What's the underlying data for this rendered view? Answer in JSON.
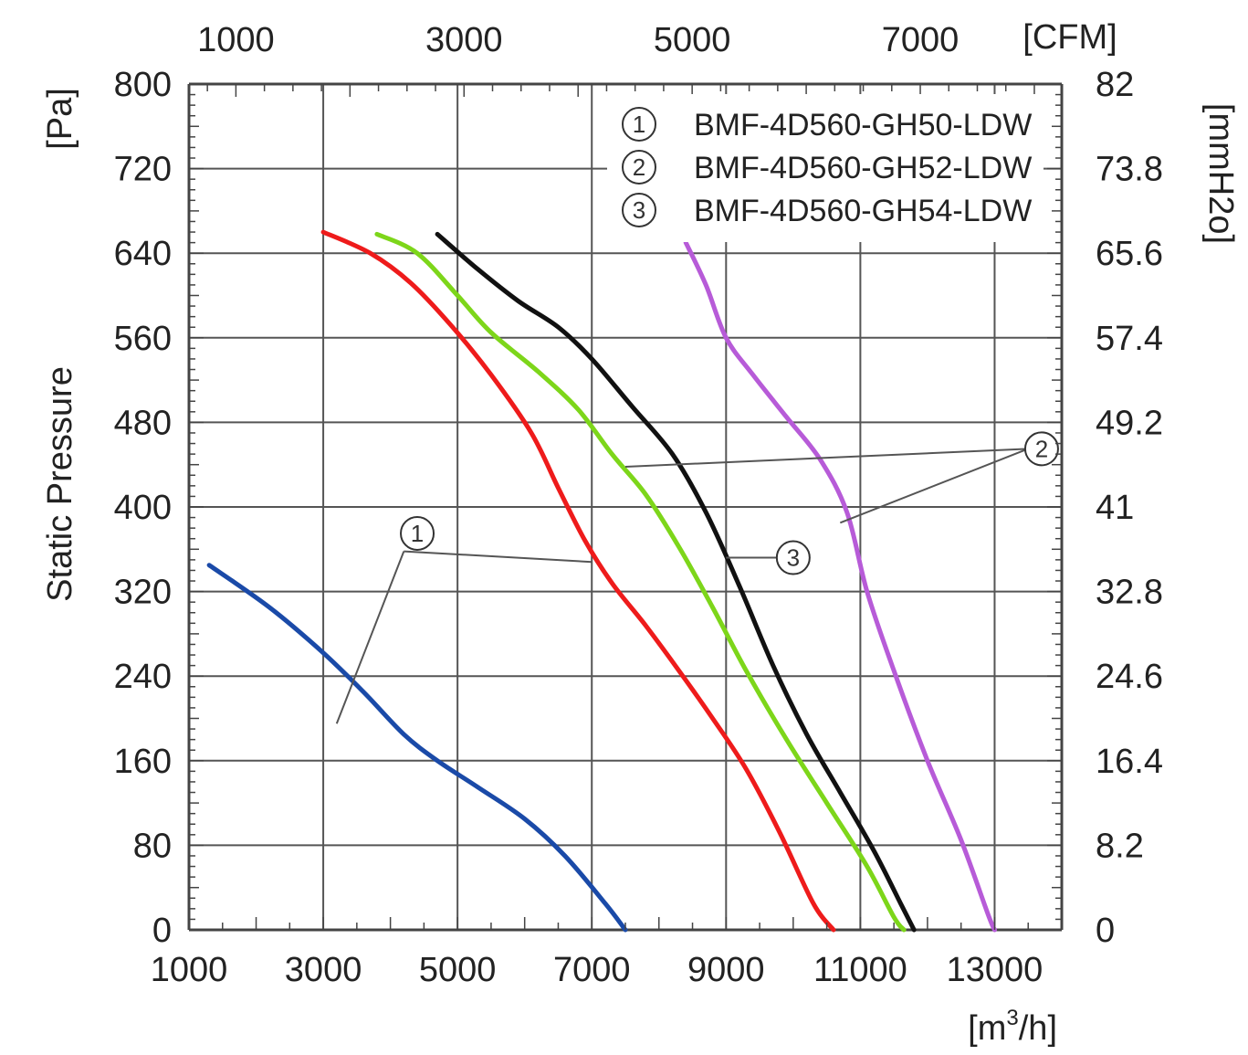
{
  "chart_data": {
    "type": "line",
    "title": "",
    "ylabel": "Static Pressure",
    "y_unit": "[Pa]",
    "xlabel": "",
    "x_unit": "[m³/h]",
    "x_unit_base": "[m",
    "x_unit_sup": "3",
    "x_unit_tail": "/h]",
    "top_axis_unit": "[CFM]",
    "right_axis_unit": "[mmH2o]",
    "xlim": [
      1000,
      14000
    ],
    "ylim": [
      0,
      800
    ],
    "cfm_lim": [
      588.6,
      8240.4
    ],
    "grid": true,
    "x_ticks": [
      "1000",
      "3000",
      "5000",
      "7000",
      "9000",
      "11000",
      "13000"
    ],
    "x_tick_values": [
      1000,
      3000,
      5000,
      7000,
      9000,
      11000,
      13000
    ],
    "y_ticks": [
      "0",
      "80",
      "160",
      "240",
      "320",
      "400",
      "480",
      "560",
      "640",
      "720",
      "800"
    ],
    "y_tick_values": [
      0,
      80,
      160,
      240,
      320,
      400,
      480,
      560,
      640,
      720,
      800
    ],
    "top_ticks": [
      "1000",
      "3000",
      "5000",
      "7000"
    ],
    "top_tick_values": [
      1000,
      3000,
      5000,
      7000
    ],
    "right_ticks": [
      "0",
      "8.2",
      "16.4",
      "24.6",
      "32.8",
      "41",
      "49.2",
      "57.4",
      "65.6",
      "73.8",
      "82"
    ],
    "legend_position": "top-right",
    "legend": [
      {
        "marker": "①",
        "label": "BMF-4D560-GH50-LDW"
      },
      {
        "marker": "②",
        "label": "BMF-4D560-GH52-LDW"
      },
      {
        "marker": "③",
        "label": "BMF-4D560-GH54-LDW"
      }
    ],
    "series": [
      {
        "color": "#1a4aa8",
        "points": [
          [
            1300,
            345
          ],
          [
            2200,
            305
          ],
          [
            3000,
            262
          ],
          [
            3600,
            225
          ],
          [
            4200,
            185
          ],
          [
            4700,
            160
          ],
          [
            5300,
            135
          ],
          [
            6000,
            105
          ],
          [
            6600,
            70
          ],
          [
            7200,
            25
          ],
          [
            7500,
            0
          ]
        ]
      },
      {
        "color": "#ee1b1b",
        "points": [
          [
            3000,
            660
          ],
          [
            3700,
            640
          ],
          [
            4300,
            612
          ],
          [
            4900,
            572
          ],
          [
            5500,
            525
          ],
          [
            6100,
            470
          ],
          [
            6500,
            418
          ],
          [
            6900,
            368
          ],
          [
            7300,
            328
          ],
          [
            7800,
            288
          ],
          [
            8300,
            245
          ],
          [
            8800,
            200
          ],
          [
            9300,
            152
          ],
          [
            9800,
            92
          ],
          [
            10300,
            25
          ],
          [
            10600,
            0
          ]
        ]
      },
      {
        "color": "#7dd61a",
        "points": [
          [
            3800,
            658
          ],
          [
            4400,
            640
          ],
          [
            5000,
            600
          ],
          [
            5500,
            565
          ],
          [
            6200,
            528
          ],
          [
            6800,
            492
          ],
          [
            7300,
            450
          ],
          [
            7800,
            412
          ],
          [
            8300,
            362
          ],
          [
            8800,
            305
          ],
          [
            9300,
            245
          ],
          [
            9900,
            180
          ],
          [
            10500,
            120
          ],
          [
            11100,
            60
          ],
          [
            11500,
            12
          ],
          [
            11650,
            0
          ]
        ]
      },
      {
        "color": "#111111",
        "points": [
          [
            4700,
            658
          ],
          [
            5300,
            625
          ],
          [
            5900,
            595
          ],
          [
            6500,
            570
          ],
          [
            7000,
            540
          ],
          [
            7600,
            495
          ],
          [
            8200,
            450
          ],
          [
            8700,
            395
          ],
          [
            9200,
            325
          ],
          [
            9700,
            250
          ],
          [
            10200,
            185
          ],
          [
            10700,
            130
          ],
          [
            11200,
            75
          ],
          [
            11600,
            25
          ],
          [
            11800,
            0
          ]
        ]
      },
      {
        "color": "#b75bd8",
        "points": [
          [
            8400,
            650
          ],
          [
            8700,
            610
          ],
          [
            9000,
            560
          ],
          [
            9400,
            525
          ],
          [
            9900,
            485
          ],
          [
            10400,
            445
          ],
          [
            10800,
            395
          ],
          [
            11100,
            320
          ],
          [
            11500,
            245
          ],
          [
            12000,
            160
          ],
          [
            12500,
            85
          ],
          [
            12900,
            15
          ],
          [
            13000,
            0
          ]
        ]
      }
    ],
    "annotations": [
      {
        "marker": "①",
        "x": 4400,
        "y": 375
      },
      {
        "marker": "②",
        "x": 13700,
        "y": 455
      },
      {
        "marker": "③",
        "x": 10000,
        "y": 352
      }
    ]
  }
}
